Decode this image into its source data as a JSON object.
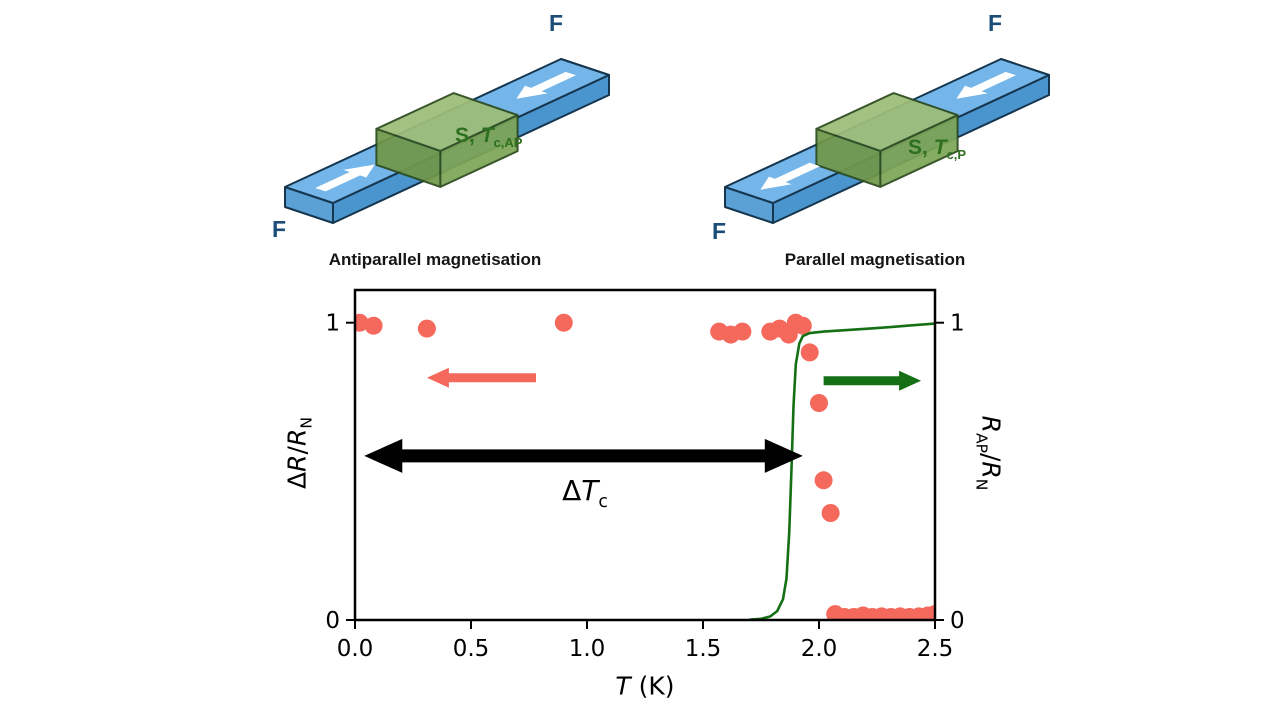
{
  "page": {
    "background": "#ffffff"
  },
  "devices": {
    "left": {
      "caption": "Antiparallel magnetisation",
      "f_label_top": "F",
      "f_label_bottom": "F",
      "s_label_prefix": "S, ",
      "s_label_symbol": "T",
      "s_label_subscript": "c,AP",
      "magnetisation": "antiparallel"
    },
    "right": {
      "caption": "Parallel magnetisation",
      "f_label_top": "F",
      "f_label_bottom": "F",
      "s_label_prefix": "S, ",
      "s_label_symbol": "T",
      "s_label_subscript": "c,P",
      "magnetisation": "parallel"
    }
  },
  "chart_data": {
    "type": "scatter",
    "title": "",
    "xlabel": {
      "symbol": "T",
      "unit": " (K)"
    },
    "left_axis_label": {
      "delta": "Δ",
      "R1": "R",
      "slash": "/",
      "R2": "R",
      "sub2": "N"
    },
    "right_axis_label": {
      "R1": "R",
      "sub1": "AP",
      "slash": "/",
      "R2": "R",
      "sub2": "N"
    },
    "xlim": [
      0,
      2.5
    ],
    "ylim": [
      0,
      1.11
    ],
    "grid": false,
    "legend": "none",
    "x_ticks": [
      {
        "value": 0.0,
        "label": "0.0"
      },
      {
        "value": 0.5,
        "label": "0.5"
      },
      {
        "value": 1.0,
        "label": "1.0"
      },
      {
        "value": 1.5,
        "label": "1.5"
      },
      {
        "value": 2.0,
        "label": "2.0"
      },
      {
        "value": 2.5,
        "label": "2.5"
      }
    ],
    "y_ticks_left": [
      {
        "value": 0,
        "label": "0"
      },
      {
        "value": 1,
        "label": "1"
      }
    ],
    "y_ticks_right": [
      {
        "value": 0,
        "label": "0"
      },
      {
        "value": 1,
        "label": "1"
      }
    ],
    "series": [
      {
        "name": "ΔR/R_N",
        "axis": "left",
        "type": "scatter",
        "color": "#f5685c",
        "marker_radius": 9,
        "points": [
          [
            0.02,
            1.0
          ],
          [
            0.08,
            0.99
          ],
          [
            0.31,
            0.98
          ],
          [
            0.9,
            1.0
          ],
          [
            1.57,
            0.97
          ],
          [
            1.62,
            0.96
          ],
          [
            1.67,
            0.97
          ],
          [
            1.79,
            0.97
          ],
          [
            1.83,
            0.98
          ],
          [
            1.87,
            0.96
          ],
          [
            1.9,
            1.0
          ],
          [
            1.93,
            0.99
          ],
          [
            1.96,
            0.9
          ],
          [
            2.0,
            0.73
          ],
          [
            2.02,
            0.47
          ],
          [
            2.05,
            0.36
          ],
          [
            2.07,
            0.02
          ],
          [
            2.11,
            0.01
          ],
          [
            2.15,
            0.01
          ],
          [
            2.19,
            0.015
          ],
          [
            2.23,
            0.01
          ],
          [
            2.27,
            0.012
          ],
          [
            2.31,
            0.01
          ],
          [
            2.35,
            0.012
          ],
          [
            2.39,
            0.01
          ],
          [
            2.43,
            0.012
          ],
          [
            2.47,
            0.015
          ],
          [
            2.5,
            0.02
          ]
        ]
      },
      {
        "name": "R_AP/R_N",
        "axis": "right",
        "type": "line",
        "color": "#157015",
        "width": 2.6,
        "points": [
          [
            1.7,
            0.001
          ],
          [
            1.75,
            0.004
          ],
          [
            1.79,
            0.012
          ],
          [
            1.82,
            0.03
          ],
          [
            1.845,
            0.07
          ],
          [
            1.86,
            0.14
          ],
          [
            1.872,
            0.3
          ],
          [
            1.882,
            0.52
          ],
          [
            1.89,
            0.72
          ],
          [
            1.9,
            0.86
          ],
          [
            1.915,
            0.93
          ],
          [
            1.93,
            0.955
          ],
          [
            1.96,
            0.965
          ],
          [
            2.02,
            0.97
          ],
          [
            2.12,
            0.975
          ],
          [
            2.25,
            0.982
          ],
          [
            2.38,
            0.99
          ],
          [
            2.5,
            0.997
          ]
        ]
      }
    ],
    "annotations": {
      "delta_tc": {
        "delta": "Δ",
        "symbol": "T",
        "subscript": "c",
        "x1": 0.04,
        "x2": 1.93,
        "y": 0.552,
        "color": "#000000"
      },
      "left_series_arrow": {
        "x_tail": 0.78,
        "x_tip": 0.31,
        "y": 0.815,
        "color": "#f5685c"
      },
      "right_series_arrow": {
        "x_tail": 2.02,
        "x_tip": 2.44,
        "y": 0.805,
        "color": "#157015"
      }
    }
  }
}
